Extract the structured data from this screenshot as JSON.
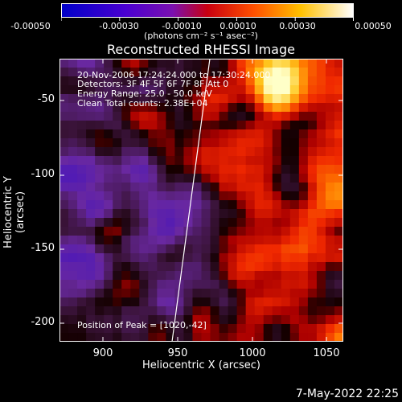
{
  "colorbar": {
    "ticks": [
      "-0.00050",
      "-0.00030",
      "-0.00010",
      "0.00010",
      "0.00030",
      "0.00050"
    ],
    "units": "(photons cm⁻² s⁻¹ asec⁻²)",
    "colors": [
      "#0000c8",
      "#6a00c8",
      "#c80000",
      "#ff8000",
      "#ffe000",
      "#ffffff"
    ]
  },
  "title": "Reconstructed RHESSI Image",
  "annotations": {
    "line1": "20-Nov-2006 17:24:24.000 to 17:30:24.000",
    "line2": "Detectors: 3F 4F 5F 6F 7F 8F  Att 0",
    "line3": "Energy Range: 25.0 - 50.0 keV",
    "line4": "Clean     Total counts: 2.38E+04",
    "peak": "Position of Peak = [1020,-42]"
  },
  "axes": {
    "x_title": "Heliocentric X (arcsec)",
    "y_title": "Heliocentric Y (arcsec)",
    "x_ticks": [
      "900",
      "950",
      "1000",
      "1050"
    ],
    "y_ticks": [
      "-50",
      "-100",
      "-150",
      "-200"
    ],
    "x_range": [
      870,
      1060
    ],
    "y_range": [
      -215,
      -25
    ]
  },
  "date_stamp": "7-May-2022 22:25"
}
